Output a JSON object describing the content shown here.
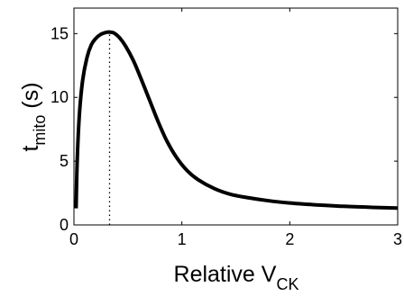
{
  "chart_data": {
    "type": "line",
    "title": "",
    "xlabel": {
      "main": "Relative V",
      "sub": "CK"
    },
    "ylabel": {
      "main": "t",
      "sub": "mito",
      "unit": " (s)"
    },
    "xlim": [
      0,
      3
    ],
    "ylim": [
      0,
      17
    ],
    "xticks": [
      0,
      1,
      2,
      3
    ],
    "yticks": [
      0,
      5,
      10,
      15
    ],
    "grid": false,
    "legend": "none",
    "series": [
      {
        "color": "#000000",
        "style": "solid",
        "x": [
          0.02,
          0.03,
          0.05,
          0.08,
          0.12,
          0.16,
          0.2,
          0.25,
          0.3,
          0.33,
          0.37,
          0.42,
          0.48,
          0.55,
          0.62,
          0.7,
          0.78,
          0.86,
          0.95,
          1.05,
          1.15,
          1.3,
          1.45,
          1.6,
          1.8,
          2.0,
          2.2,
          2.5,
          2.8,
          3.0
        ],
        "y": [
          1.3,
          5.0,
          8.6,
          11.3,
          13.1,
          14.1,
          14.6,
          14.95,
          15.1,
          15.12,
          15.05,
          14.7,
          14.0,
          12.9,
          11.5,
          9.8,
          8.1,
          6.6,
          5.3,
          4.25,
          3.55,
          2.85,
          2.4,
          2.15,
          1.9,
          1.72,
          1.6,
          1.46,
          1.37,
          1.32
        ]
      }
    ],
    "annotations": [
      {
        "type": "vline",
        "x": 0.33,
        "y_from": 0,
        "y_to": 15.12,
        "style": "dotted",
        "color": "#000000"
      }
    ]
  }
}
